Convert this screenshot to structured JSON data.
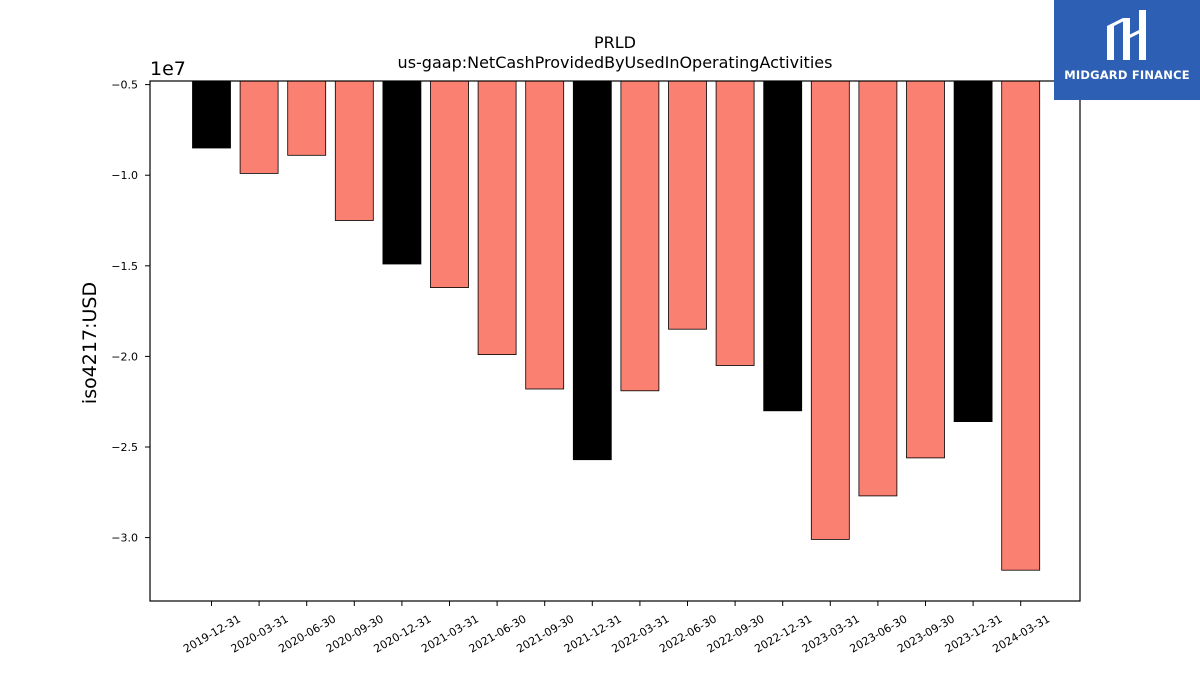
{
  "chart_data": {
    "type": "bar",
    "title": "PRLD",
    "subtitle": "us-gaap:NetCashProvidedByUsedInOperatingActivities",
    "ylabel": "iso4217:USD",
    "xlabel": "",
    "offset_label": "1e7",
    "ylim": [
      -33500000,
      -4800000
    ],
    "yticks": [
      -5000000,
      -10000000,
      -15000000,
      -20000000,
      -25000000,
      -30000000
    ],
    "ytick_labels": [
      "−0.5",
      "−1.0",
      "−1.5",
      "−2.0",
      "−2.5",
      "−3.0"
    ],
    "categories": [
      "2019-12-31",
      "2020-03-31",
      "2020-06-30",
      "2020-09-30",
      "2020-12-31",
      "2021-03-31",
      "2021-06-30",
      "2021-09-30",
      "2021-12-31",
      "2022-03-31",
      "2022-06-30",
      "2022-09-30",
      "2022-12-31",
      "2023-03-31",
      "2023-06-30",
      "2023-09-30",
      "2023-12-31",
      "2024-03-31"
    ],
    "values": [
      -8500000,
      -9900000,
      -8900000,
      -12500000,
      -14900000,
      -16200000,
      -19900000,
      -21800000,
      -25700000,
      -21900000,
      -18500000,
      -20500000,
      -23000000,
      -30100000,
      -27700000,
      -25600000,
      -23600000,
      -31800000
    ],
    "highlight_color": "#000000",
    "base_color": "#fa8072",
    "highlight_categories": [
      "2019-12-31",
      "2020-12-31",
      "2021-12-31",
      "2022-12-31",
      "2023-12-31"
    ],
    "grid": false
  },
  "logo": {
    "text": "MIDGARD FINANCE",
    "color": "#2d5fb5"
  }
}
